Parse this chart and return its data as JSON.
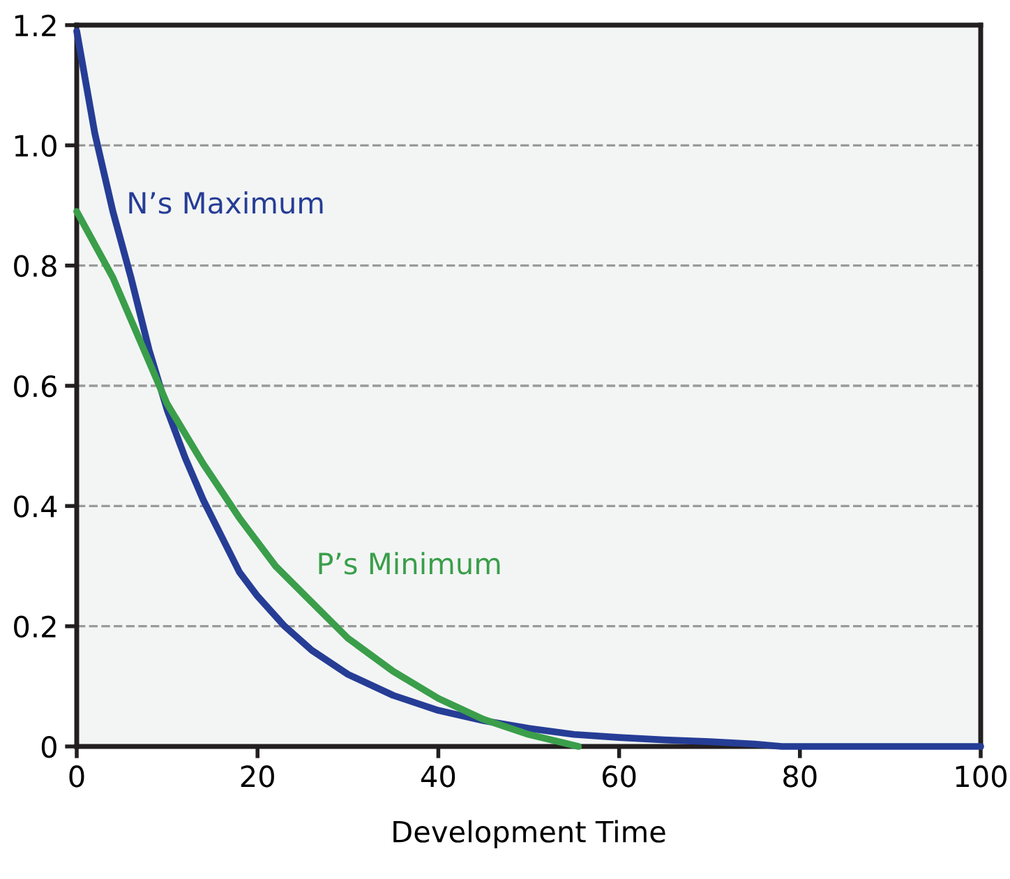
{
  "chart_data": {
    "type": "line",
    "xlabel": "Development Time",
    "series": [
      {
        "color": "#263d96",
        "x": [
          0,
          2,
          4,
          6,
          8,
          10,
          12,
          14,
          16,
          18,
          20,
          23,
          26,
          30,
          35,
          40,
          45,
          50,
          55,
          60,
          65,
          70,
          75,
          78,
          90,
          100
        ],
        "values": [
          1.19,
          1.02,
          0.89,
          0.78,
          0.66,
          0.56,
          0.48,
          0.41,
          0.35,
          0.29,
          0.25,
          0.2,
          0.16,
          0.12,
          0.085,
          0.06,
          0.043,
          0.03,
          0.02,
          0.015,
          0.011,
          0.008,
          0.004,
          0,
          0,
          0
        ]
      },
      {
        "color": "#3a9e4a",
        "x": [
          0,
          4,
          8,
          10,
          14,
          18,
          22,
          26,
          30,
          35,
          40,
          45,
          50,
          55.5
        ],
        "values": [
          0.89,
          0.78,
          0.64,
          0.57,
          0.47,
          0.38,
          0.3,
          0.24,
          0.18,
          0.125,
          0.08,
          0.045,
          0.02,
          0
        ]
      }
    ],
    "annotations": [
      "N’s Maximum",
      "P’s Minimum"
    ],
    "xlim": [
      0,
      100
    ],
    "xticks": [
      0,
      20,
      40,
      60,
      80,
      100
    ],
    "ylim": [
      0,
      1.2
    ],
    "yticks": [
      {
        "value": 0,
        "label": "0"
      },
      0.2,
      0.4,
      0.6,
      0.8,
      {
        "value": 1,
        "label": "1.0"
      },
      1.2
    ],
    "grid": "y",
    "line_style": "solid",
    "marker": "none"
  }
}
